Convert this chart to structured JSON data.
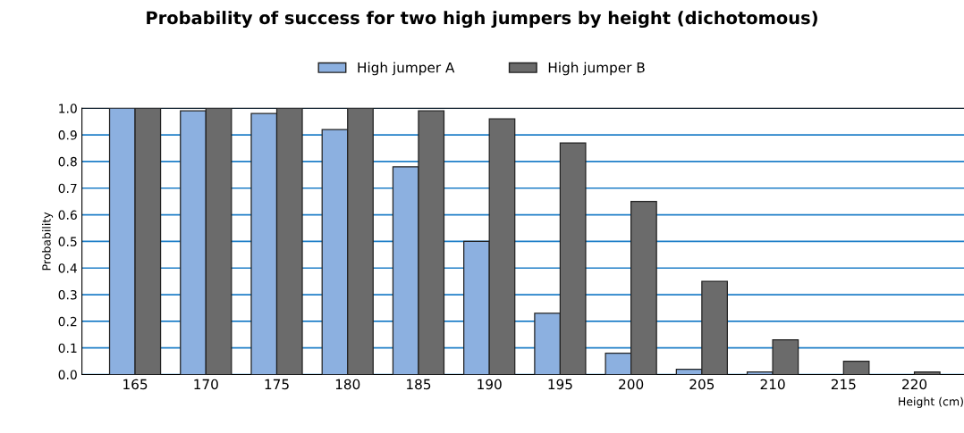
{
  "chart_data": {
    "type": "bar",
    "title": "Probability of success for two high jumpers by height (dichotomous)",
    "xlabel": "Height (cm)",
    "ylabel": "Probability",
    "categories": [
      "165",
      "170",
      "175",
      "180",
      "185",
      "190",
      "195",
      "200",
      "205",
      "210",
      "215",
      "220"
    ],
    "series": [
      {
        "name": "High jumper A",
        "color": "#8cb0e0",
        "values": [
          1.0,
          0.99,
          0.98,
          0.92,
          0.78,
          0.5,
          0.23,
          0.08,
          0.02,
          0.01,
          0,
          0
        ]
      },
      {
        "name": "High jumper B",
        "color": "#6b6b6b",
        "values": [
          1.0,
          1.0,
          1.0,
          1.0,
          0.99,
          0.96,
          0.87,
          0.65,
          0.35,
          0.13,
          0.05,
          0.01
        ]
      }
    ],
    "ylim": [
      0,
      1.0
    ],
    "yticks": [
      {
        "value": 0,
        "label": "0.0"
      },
      0.1,
      0.2,
      0.3,
      0.4,
      0.5,
      0.6,
      0.7,
      0.8,
      0.9,
      {
        "value": 1,
        "label": "1.0"
      }
    ],
    "grid": "y",
    "legend": "top"
  }
}
